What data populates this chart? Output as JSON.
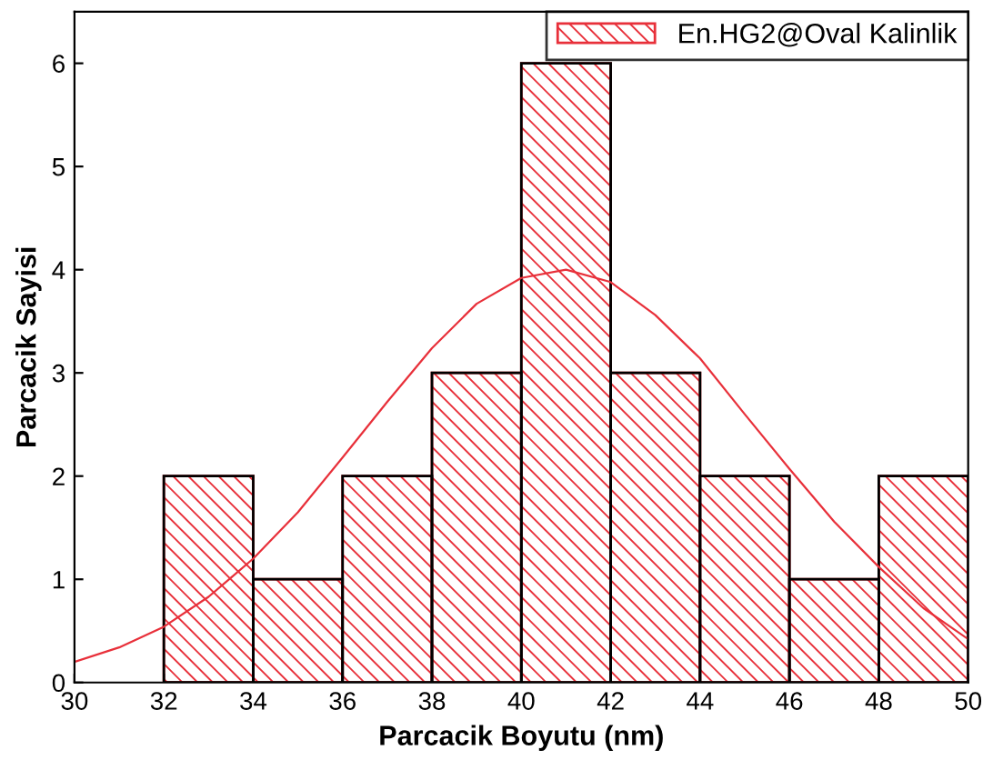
{
  "chart_data": {
    "type": "histogram",
    "xlabel": "Parcacik Boyutu (nm)",
    "ylabel": "Parcacik Sayisi",
    "bins": [
      32,
      34,
      36,
      38,
      40,
      42,
      44,
      46,
      48,
      50
    ],
    "series": [
      {
        "name": "En.HG2@Oval Kalinlik",
        "color": "#e8303a",
        "values": [
          2,
          1,
          2,
          3,
          6,
          3,
          2,
          1,
          2
        ]
      },
      {
        "type": "line",
        "color": "#e8303a",
        "x": [
          30,
          31,
          32,
          33,
          34,
          35,
          36,
          37,
          38,
          39,
          40,
          41,
          42,
          43,
          44,
          45,
          46,
          47,
          48,
          49,
          50
        ],
        "values": [
          0.2,
          0.34,
          0.54,
          0.83,
          1.2,
          1.65,
          2.18,
          2.72,
          3.24,
          3.67,
          3.92,
          4.0,
          3.88,
          3.56,
          3.14,
          2.6,
          2.07,
          1.56,
          1.12,
          0.72,
          0.42
        ]
      }
    ],
    "xlim": [
      30,
      50
    ],
    "xticks": [
      30,
      32,
      34,
      36,
      38,
      40,
      42,
      44,
      46,
      48,
      50
    ],
    "ylim": [
      0,
      6.5
    ],
    "yticks": [
      0,
      1,
      2,
      3,
      4,
      5,
      6
    ],
    "legend": "top right",
    "grid": false
  }
}
